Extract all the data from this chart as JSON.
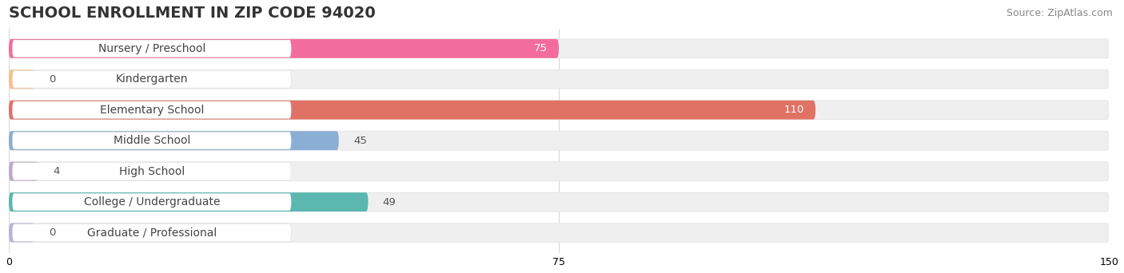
{
  "title": "SCHOOL ENROLLMENT IN ZIP CODE 94020",
  "source": "Source: ZipAtlas.com",
  "categories": [
    "Nursery / Preschool",
    "Kindergarten",
    "Elementary School",
    "Middle School",
    "High School",
    "College / Undergraduate",
    "Graduate / Professional"
  ],
  "values": [
    75,
    0,
    110,
    45,
    4,
    49,
    0
  ],
  "bar_colors": [
    "#f26d9b",
    "#f5c18a",
    "#e07265",
    "#8aaed4",
    "#c0a8cc",
    "#5ab8b0",
    "#b8b4d8"
  ],
  "bar_bg_color": "#efefef",
  "label_bg_color": "#ffffff",
  "xlim": [
    0,
    150
  ],
  "xticks": [
    0,
    75,
    150
  ],
  "background_color": "#ffffff",
  "title_fontsize": 14,
  "source_fontsize": 9,
  "label_fontsize": 10,
  "value_fontsize": 9.5,
  "bar_height": 0.62,
  "grid_color": "#d8d8d8",
  "label_text_color": "#444444",
  "value_label_dark_color": "#555555",
  "value_label_light_color": "#ffffff"
}
